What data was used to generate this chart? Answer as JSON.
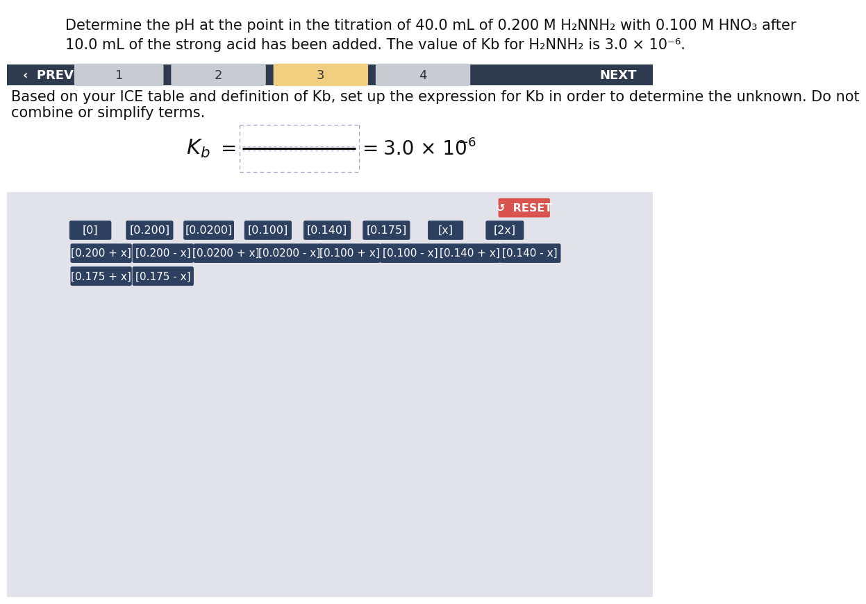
{
  "title_line1": "Determine the pH at the point in the titration of 40.0 mL of 0.200 M H₂NNH₂ with 0.100 M HNO₃ after",
  "title_line2": "10.0 mL of the strong acid has been added. The value of Kb for H₂NNH₂ is 3.0 × 10⁻⁶.",
  "nav_bg": "#2e3a4e",
  "nav_highlight_color": "#f0d080",
  "nav_gray_color": "#c8ccd2",
  "instruction_line1": "Based on your ICE table and definition of Kb, set up the expression for Kb in order to determine the unknown. Do not",
  "instruction_line2": "combine or simplify terms.",
  "lower_bg": "#e2e2ea",
  "reset_color": "#d9534f",
  "button_bg": "#2e4060",
  "button_fg": "#ffffff",
  "row1_buttons": [
    "[0]",
    "[0.200]",
    "[0.0200]",
    "[0.100]",
    "[0.140]",
    "[0.175]",
    "[x]",
    "[2x]"
  ],
  "row2_buttons": [
    "[0.200 + x]",
    "[0.200 - x]",
    "[0.0200 + x]",
    "[0.0200 - x]",
    "[0.100 + x]",
    "[0.100 - x]",
    "[0.140 + x]",
    "[0.140 - x]"
  ],
  "row3_buttons": [
    "[0.175 + x]",
    "[0.175 - x]"
  ],
  "white_bg": "#ffffff",
  "text_color": "#111111"
}
